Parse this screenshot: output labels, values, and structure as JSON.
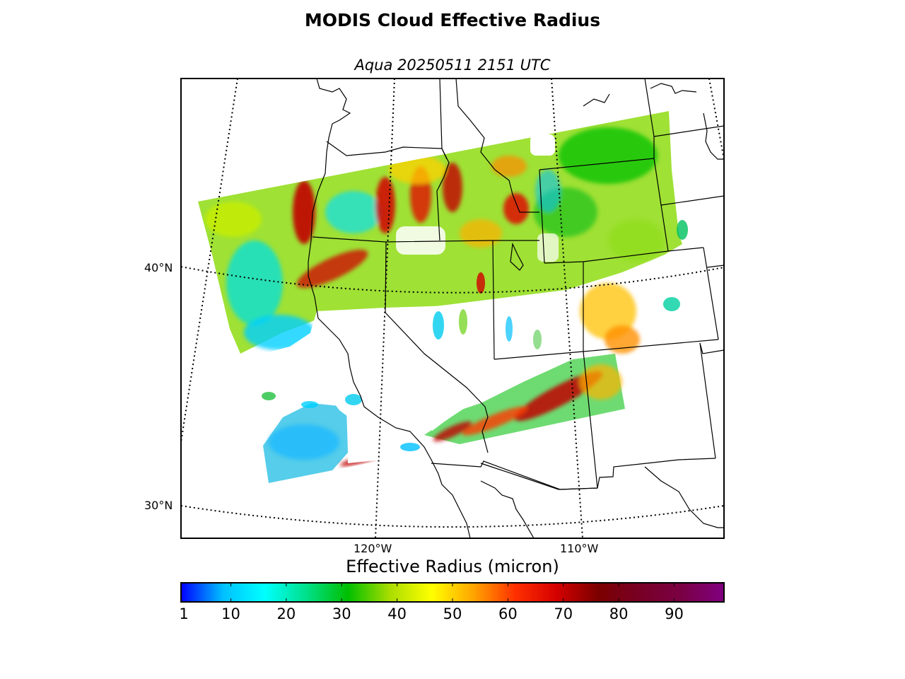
{
  "title": "MODIS Cloud Effective Radius",
  "subtitle": "Aqua 20250511 2151 UTC",
  "map": {
    "projection": "lambert-conformal",
    "latitude_labels": [
      "40°N",
      "30°N"
    ],
    "longitude_labels": [
      "120°W",
      "110°W"
    ],
    "graticule": "dotted",
    "boundaries": [
      "coastline",
      "country",
      "state"
    ]
  },
  "colorbar": {
    "label": "Effective Radius (micron)",
    "min": 1,
    "max": 99,
    "tick_labels": [
      "1",
      "10",
      "20",
      "30",
      "40",
      "50",
      "60",
      "70",
      "80",
      "90"
    ],
    "tick_values": [
      1,
      10,
      20,
      30,
      40,
      50,
      60,
      70,
      80,
      90
    ],
    "colormap": [
      "#0000ff",
      "#00bfff",
      "#00ffff",
      "#00e08a",
      "#00bf00",
      "#aadd00",
      "#ffff00",
      "#ffa500",
      "#ff3000",
      "#d40000",
      "#7a0000",
      "#780026",
      "#7a0045",
      "#800080"
    ]
  },
  "colors": {
    "low": "#00bfff",
    "mid": "#00c000",
    "high": "#ff0000",
    "very_high": "#8b0000"
  }
}
